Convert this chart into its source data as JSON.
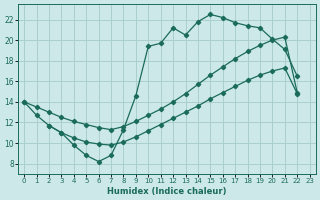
{
  "xlabel": "Humidex (Indice chaleur)",
  "bg_color": "#cce8e8",
  "grid_color": "#aacece",
  "line_color": "#1a6b5a",
  "xlim": [
    -0.5,
    23.5
  ],
  "ylim": [
    7,
    23.5
  ],
  "xticks": [
    0,
    1,
    2,
    3,
    4,
    5,
    6,
    7,
    8,
    9,
    10,
    11,
    12,
    13,
    14,
    15,
    16,
    17,
    18,
    19,
    20,
    21,
    22,
    23
  ],
  "yticks": [
    8,
    10,
    12,
    14,
    16,
    18,
    20,
    22
  ],
  "line1_x": [
    0,
    1,
    2,
    3,
    4,
    5,
    6,
    7,
    8,
    9,
    10,
    11,
    12,
    13,
    14,
    15,
    16,
    17,
    18,
    19,
    20,
    21,
    22
  ],
  "line1_y": [
    14,
    12.7,
    11.7,
    11.0,
    9.8,
    8.8,
    8.2,
    8.8,
    11.3,
    14.6,
    19.4,
    19.7,
    21.2,
    20.5,
    21.8,
    22.5,
    22.2,
    21.7,
    21.4,
    21.2,
    20.1,
    19.1,
    16.5
  ],
  "line2_x": [
    0,
    1,
    2,
    3,
    4,
    5,
    6,
    7,
    8,
    9,
    10,
    11,
    12,
    13,
    14,
    15,
    16,
    17,
    18,
    19,
    20,
    21,
    22
  ],
  "line2_y": [
    14,
    13.5,
    13.0,
    12.5,
    12.1,
    11.8,
    11.5,
    11.3,
    11.6,
    12.1,
    12.7,
    13.3,
    14.0,
    14.8,
    15.7,
    16.6,
    17.4,
    18.2,
    18.9,
    19.5,
    20.0,
    20.3,
    14.9
  ],
  "line3_x": [
    2,
    3,
    4,
    5,
    6,
    7,
    8,
    9,
    10,
    11,
    12,
    13,
    14,
    15,
    16,
    17,
    18,
    19,
    20,
    21,
    22
  ],
  "line3_y": [
    11.7,
    11.0,
    10.5,
    10.1,
    9.9,
    9.8,
    10.1,
    10.6,
    11.2,
    11.8,
    12.4,
    13.0,
    13.6,
    14.3,
    14.9,
    15.5,
    16.1,
    16.6,
    17.0,
    17.3,
    14.8
  ]
}
